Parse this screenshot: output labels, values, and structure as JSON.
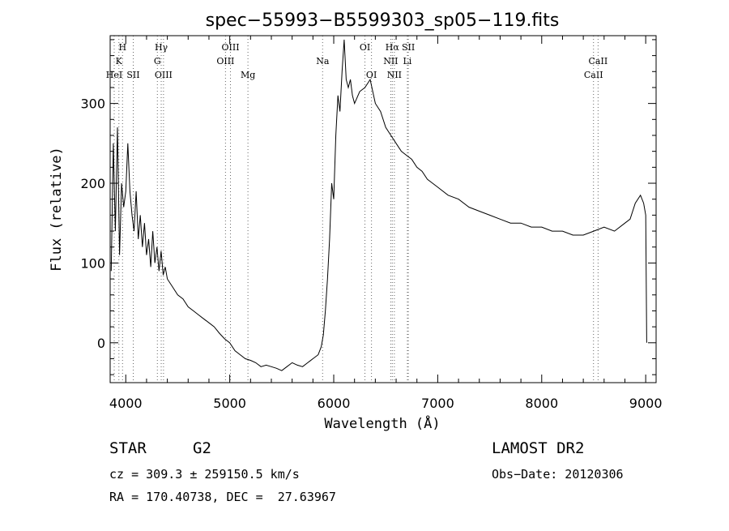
{
  "chart_data": {
    "type": "line",
    "title": "spec−55993−B5599303_sp05−119.fits",
    "xlabel": "Wavelength (Å)",
    "ylabel": "Flux (relative)",
    "xlim": [
      3850,
      9100
    ],
    "ylim": [
      -50,
      385
    ],
    "xticks": [
      4000,
      5000,
      6000,
      7000,
      8000,
      9000
    ],
    "yticks": [
      0,
      100,
      200,
      300
    ],
    "grid": false,
    "series": [
      {
        "x": [
          3860,
          3880,
          3900,
          3920,
          3940,
          3960,
          3980,
          4000,
          4020,
          4040,
          4060,
          4080,
          4100,
          4120,
          4140,
          4160,
          4180,
          4200,
          4220,
          4240,
          4260,
          4280,
          4300,
          4320,
          4340,
          4360,
          4380,
          4400,
          4450,
          4500,
          4550,
          4600,
          4650,
          4700,
          4750,
          4800,
          4850,
          4900,
          4950,
          5000,
          5050,
          5100,
          5150,
          5200,
          5250,
          5300,
          5350,
          5400,
          5450,
          5500,
          5550,
          5600,
          5650,
          5700,
          5750,
          5800,
          5850,
          5880,
          5900,
          5920,
          5940,
          5960,
          5980,
          6000,
          6020,
          6040,
          6060,
          6080,
          6100,
          6120,
          6140,
          6160,
          6180,
          6200,
          6250,
          6300,
          6350,
          6400,
          6450,
          6500,
          6550,
          6600,
          6650,
          6700,
          6750,
          6800,
          6850,
          6900,
          6950,
          7000,
          7100,
          7200,
          7300,
          7400,
          7500,
          7600,
          7700,
          7800,
          7900,
          8000,
          8100,
          8200,
          8300,
          8400,
          8500,
          8600,
          8700,
          8800,
          8850,
          8900,
          8950,
          8980,
          9000,
          9010
        ],
        "y": [
          90,
          250,
          140,
          270,
          110,
          200,
          170,
          190,
          250,
          190,
          160,
          140,
          190,
          130,
          160,
          120,
          150,
          110,
          130,
          95,
          140,
          100,
          120,
          90,
          115,
          85,
          95,
          80,
          70,
          60,
          55,
          45,
          40,
          35,
          30,
          25,
          20,
          12,
          5,
          0,
          -10,
          -15,
          -20,
          -22,
          -25,
          -30,
          -28,
          -30,
          -32,
          -35,
          -30,
          -25,
          -28,
          -30,
          -25,
          -20,
          -15,
          -5,
          10,
          40,
          80,
          130,
          200,
          180,
          260,
          310,
          290,
          340,
          380,
          330,
          320,
          330,
          310,
          300,
          315,
          320,
          330,
          300,
          290,
          270,
          260,
          250,
          240,
          235,
          230,
          220,
          215,
          205,
          200,
          195,
          185,
          180,
          170,
          165,
          160,
          155,
          150,
          150,
          145,
          145,
          140,
          140,
          135,
          135,
          140,
          145,
          140,
          150,
          155,
          175,
          185,
          175,
          160,
          0
        ]
      }
    ],
    "annotations": [
      {
        "x": 3889,
        "labels": [
          "",
          "",
          "HeI"
        ]
      },
      {
        "x": 3934,
        "labels": [
          "",
          "K",
          ""
        ]
      },
      {
        "x": 3969,
        "labels": [
          "H",
          "",
          ""
        ]
      },
      {
        "x": 4072,
        "labels": [
          "",
          "",
          "SII"
        ]
      },
      {
        "x": 4304,
        "labels": [
          "",
          "G",
          ""
        ]
      },
      {
        "x": 4341,
        "labels": [
          "Hγ",
          "",
          ""
        ]
      },
      {
        "x": 4363,
        "labels": [
          "",
          "",
          "OIII"
        ]
      },
      {
        "x": 4959,
        "labels": [
          "",
          "OIII",
          ""
        ]
      },
      {
        "x": 5007,
        "labels": [
          "OIII",
          "",
          ""
        ]
      },
      {
        "x": 5175,
        "labels": [
          "",
          "",
          "Mg"
        ]
      },
      {
        "x": 5893,
        "labels": [
          "",
          "Na",
          ""
        ]
      },
      {
        "x": 6300,
        "labels": [
          "OI",
          "",
          ""
        ]
      },
      {
        "x": 6363,
        "labels": [
          "",
          "",
          "OI"
        ]
      },
      {
        "x": 6548,
        "labels": [
          "",
          "NII",
          ""
        ]
      },
      {
        "x": 6563,
        "labels": [
          "Hα",
          "",
          ""
        ]
      },
      {
        "x": 6583,
        "labels": [
          "",
          "",
          "NII"
        ]
      },
      {
        "x": 6717,
        "labels": [
          "SII",
          "",
          ""
        ]
      },
      {
        "x": 6708,
        "labels": [
          "",
          "Li",
          ""
        ]
      },
      {
        "x": 8498,
        "labels": [
          "",
          "",
          "CaII"
        ]
      },
      {
        "x": 8542,
        "labels": [
          "",
          "CaII",
          ""
        ]
      }
    ]
  },
  "info": {
    "class_label": "STAR",
    "subclass": "G2",
    "survey": "LAMOST DR2",
    "cz": "cz = 309.3 ± 259150.5 km/s",
    "obs_date": "Obs−Date: 20120306",
    "coords": "RA = 170.40738, DEC =  27.63967"
  }
}
